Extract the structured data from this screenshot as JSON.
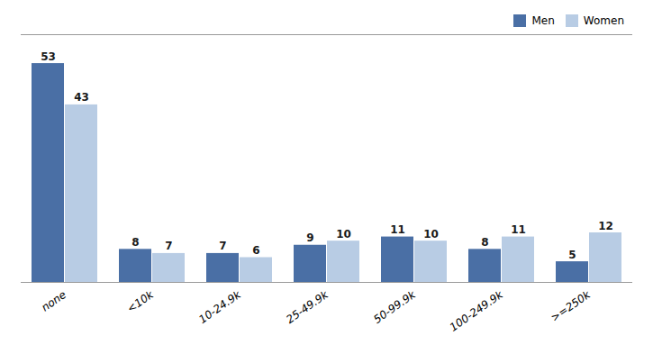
{
  "chart_data": {
    "type": "bar",
    "categories": [
      "none",
      "<10k",
      "10-24.9k",
      "25-49.9k",
      "50-99.9k",
      "100-249.9k",
      ">=250k"
    ],
    "series": [
      {
        "name": "Men",
        "color": "#4a6fa5",
        "values": [
          53,
          8,
          7,
          9,
          11,
          8,
          5
        ]
      },
      {
        "name": "Women",
        "color": "#b8cce4",
        "values": [
          43,
          7,
          6,
          10,
          10,
          11,
          12
        ]
      }
    ],
    "ylim": [
      0,
      60
    ],
    "tick_labels": "x",
    "data_labels": true,
    "legend": "upper right",
    "grid": false
  }
}
